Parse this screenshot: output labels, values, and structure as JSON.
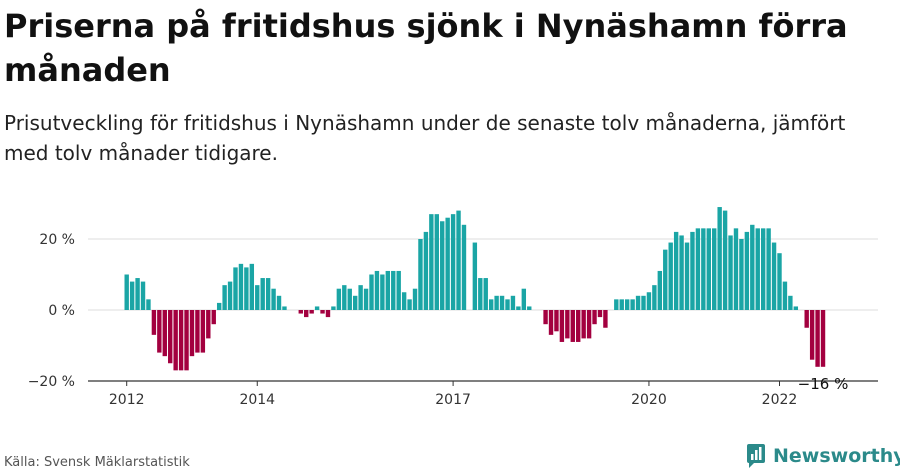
{
  "header": {
    "title": "Priserna på fritidshus sjönk i Nynäshamn förra månaden",
    "subtitle": "Prisutveckling för fritidshus i Nynäshamn under de senaste tolv månaderna, jämfört med tolv månader tidigare."
  },
  "footer": {
    "source": "Källa: Svensk Mäklarstatistik",
    "brand": "Newsworthy"
  },
  "colors": {
    "positive": "#1aa5a5",
    "negative": "#a3003f",
    "axis": "#333333",
    "grid": "#dddddd",
    "brand": "#2b8a8a"
  },
  "chart_data": {
    "type": "bar",
    "title": "Priserna på fritidshus sjönk i Nynäshamn förra månaden",
    "xlabel": "",
    "ylabel": "",
    "ylim": [
      -20,
      30
    ],
    "yticks": [
      {
        "value": 20,
        "label": "20 %"
      },
      {
        "value": 0,
        "label": "0 %"
      },
      {
        "value": -20,
        "label": "−20 %"
      }
    ],
    "xticks": [
      {
        "index": 0,
        "label": "2012"
      },
      {
        "index": 24,
        "label": "2014"
      },
      {
        "index": 60,
        "label": "2017"
      },
      {
        "index": 96,
        "label": "2020"
      },
      {
        "index": 120,
        "label": "2022"
      }
    ],
    "grid": true,
    "period": {
      "start": "2012-01",
      "frequency": "monthly"
    },
    "last_value_label": "−16 %",
    "values": [
      10,
      8,
      9,
      8,
      3,
      -7,
      -12,
      -13,
      -15,
      -17,
      -17,
      -17,
      -13,
      -12,
      -12,
      -8,
      -4,
      2,
      7,
      8,
      12,
      13,
      12,
      13,
      7,
      9,
      9,
      6,
      4,
      1,
      0,
      0,
      -1,
      -2,
      -1,
      1,
      -1,
      -2,
      1,
      6,
      7,
      6,
      4,
      7,
      6,
      10,
      11,
      10,
      11,
      11,
      11,
      5,
      3,
      6,
      20,
      22,
      27,
      27,
      25,
      26,
      27,
      28,
      24,
      0,
      19,
      9,
      9,
      3,
      4,
      4,
      3,
      4,
      1,
      6,
      1,
      0,
      0,
      -4,
      -7,
      -6,
      -9,
      -8,
      -9,
      -9,
      -8,
      -8,
      -4,
      -2,
      -5,
      0,
      3,
      3,
      3,
      3,
      4,
      4,
      5,
      7,
      11,
      17,
      19,
      22,
      21,
      19,
      22,
      23,
      23,
      23,
      23,
      29,
      28,
      21,
      23,
      20,
      22,
      24,
      23,
      23,
      23,
      19,
      16,
      8,
      4,
      1,
      0,
      -5,
      -14,
      -16,
      -16
    ]
  }
}
